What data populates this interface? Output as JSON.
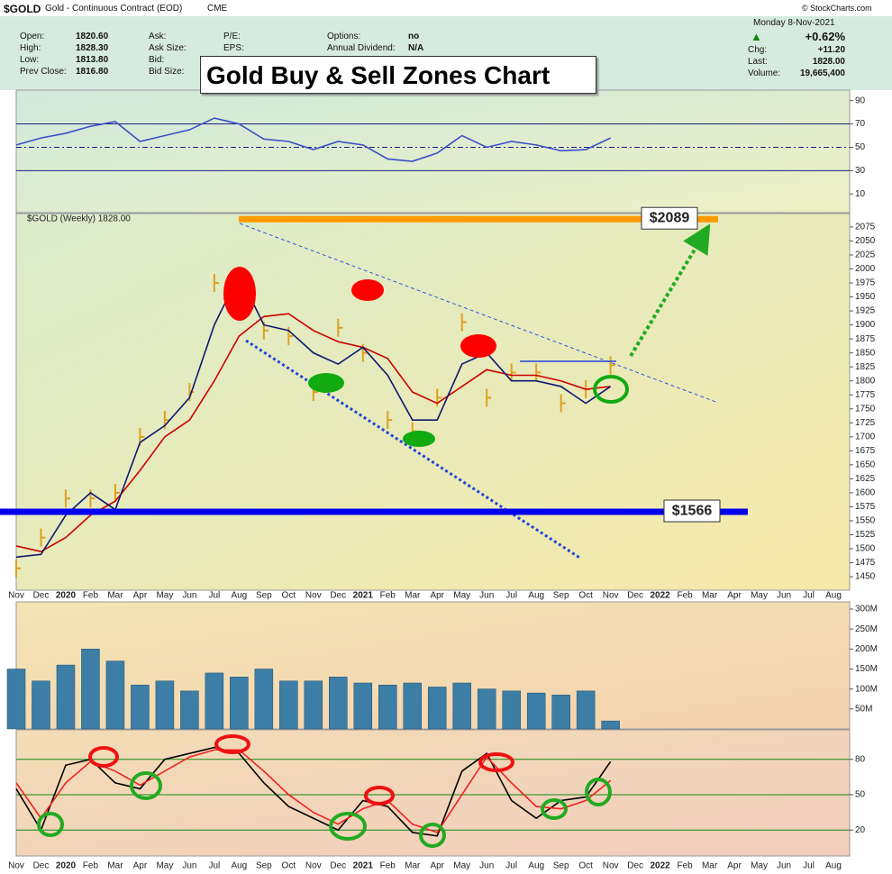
{
  "header": {
    "symbol": "$GOLD",
    "description": "Gold - Continuous Contract (EOD)",
    "exchange": "CME",
    "copyright": "© StockCharts.com",
    "col1": [
      {
        "label": "Open:",
        "value": "1820.60"
      },
      {
        "label": "High:",
        "value": "1828.30"
      },
      {
        "label": "Low:",
        "value": "1813.80"
      },
      {
        "label": "Prev Close:",
        "value": "1816.80"
      }
    ],
    "col2": [
      "Ask:",
      "Ask Size:",
      "Bid:",
      "Bid Size:"
    ],
    "col3": [
      "P/E:",
      "EPS:"
    ],
    "col4": [
      {
        "label": "Options:",
        "value": "no"
      },
      {
        "label": "Annual Dividend:",
        "value": "N/A"
      }
    ],
    "date": "Monday  8-Nov-2021",
    "change_pct": "+0.62%",
    "col5": [
      {
        "label": "Chg:",
        "value": "+11.20"
      },
      {
        "label": "Last:",
        "value": "1828.00"
      },
      {
        "label": "Volume:",
        "value": "19,665,400"
      }
    ]
  },
  "overlay_title": "Gold Buy & Sell Zones Chart",
  "chart_data": [
    {
      "type": "line",
      "ylim": [
        -6,
        99
      ],
      "yticks": [
        10,
        30,
        50,
        70,
        90
      ],
      "levels": [
        30,
        50,
        70
      ],
      "series": [
        {
          "color": "#3a4fc8",
          "values": [
            52,
            58,
            62,
            68,
            72,
            55,
            60,
            65,
            75,
            70,
            57,
            55,
            48,
            55,
            52,
            40,
            38,
            45,
            60,
            50,
            55,
            52,
            47,
            48,
            58,
            null,
            null,
            null,
            null,
            null,
            null,
            null,
            null,
            null
          ]
        }
      ]
    },
    {
      "type": "line",
      "legend_label": "$GOLD (Weekly) 1828.00",
      "ylim": [
        1426,
        2099
      ],
      "yticks": [
        1450,
        1475,
        1500,
        1525,
        1550,
        1575,
        1600,
        1625,
        1650,
        1675,
        1700,
        1725,
        1750,
        1775,
        1800,
        1825,
        1850,
        1875,
        1900,
        1925,
        1950,
        1975,
        2000,
        2025,
        2050,
        2075
      ],
      "categories": [
        "Nov",
        "Dec",
        "2020",
        "Feb",
        "Mar",
        "Apr",
        "May",
        "Jun",
        "Jul",
        "Aug",
        "Sep",
        "Oct",
        "Nov",
        "Dec",
        "2021",
        "Feb",
        "Mar",
        "Apr",
        "May",
        "Jun",
        "Jul",
        "Aug",
        "Sep",
        "Oct",
        "Nov",
        "Dec",
        "2022",
        "Feb",
        "Mar",
        "Apr",
        "May",
        "Jun",
        "Jul",
        "Aug"
      ],
      "annotations": [
        {
          "label": "$2089",
          "value": 2089,
          "color": "#ff9900"
        },
        {
          "label": "$1566",
          "value": 1566,
          "color": "#0000ee"
        }
      ],
      "series": [
        {
          "color": "#e0a020",
          "marker": "tick",
          "values": [
            1465,
            1520,
            1590,
            1590,
            1600,
            1700,
            1730,
            1780,
            1975,
            1970,
            1890,
            1880,
            1780,
            1895,
            1850,
            1730,
            1710,
            1770,
            1905,
            1770,
            1815,
            1815,
            1760,
            1785,
            1828,
            null,
            null,
            null,
            null,
            null,
            null,
            null,
            null,
            null
          ]
        },
        {
          "color": "#cc0000",
          "values": [
            1505,
            1495,
            1520,
            1560,
            1585,
            1640,
            1700,
            1730,
            1800,
            1880,
            1915,
            1920,
            1890,
            1870,
            1860,
            1840,
            1780,
            1760,
            1790,
            1820,
            1810,
            1810,
            1800,
            1785,
            1790,
            null,
            null,
            null,
            null,
            null,
            null,
            null,
            null,
            null
          ]
        },
        {
          "color": "#101870",
          "values": [
            1485,
            1490,
            1560,
            1600,
            1570,
            1690,
            1720,
            1770,
            1900,
            1990,
            1900,
            1890,
            1850,
            1830,
            1860,
            1810,
            1730,
            1730,
            1830,
            1850,
            1800,
            1800,
            1790,
            1760,
            1790,
            null,
            null,
            null,
            null,
            null,
            null,
            null,
            null,
            null
          ]
        }
      ]
    },
    {
      "type": "bar",
      "ylim": [
        0,
        318000000
      ],
      "yticks": [
        {
          "value": 50000000,
          "label": "50M"
        },
        {
          "value": 100000000,
          "label": "100M"
        },
        {
          "value": 150000000,
          "label": "150M"
        },
        {
          "value": 200000000,
          "label": "200M"
        },
        {
          "value": 250000000,
          "label": "250M"
        },
        {
          "value": 300000000,
          "label": "300M"
        }
      ],
      "series": [
        {
          "color": "#3d7ea6",
          "values": [
            150000000,
            120000000,
            160000000,
            200000000,
            170000000,
            110000000,
            120000000,
            95000000,
            140000000,
            130000000,
            150000000,
            120000000,
            120000000,
            130000000,
            115000000,
            110000000,
            115000000,
            105000000,
            115000000,
            100000000,
            95000000,
            90000000,
            85000000,
            95000000,
            20000000,
            null,
            null,
            null,
            null,
            null,
            null,
            null,
            null,
            null
          ]
        }
      ]
    },
    {
      "type": "line",
      "ylim": [
        -2,
        105
      ],
      "yticks": [
        20,
        50,
        80
      ],
      "grid": true,
      "categories": [
        "Nov",
        "Dec",
        "2020",
        "Feb",
        "Mar",
        "Apr",
        "May",
        "Jun",
        "Jul",
        "Aug",
        "Sep",
        "Oct",
        "Nov",
        "Dec",
        "2021",
        "Feb",
        "Mar",
        "Apr",
        "May",
        "Jun",
        "Jul",
        "Aug",
        "Sep",
        "Oct",
        "Nov",
        "Dec",
        "2022",
        "Feb",
        "Mar",
        "Apr",
        "May",
        "Jun",
        "Jul",
        "Aug"
      ],
      "series": [
        {
          "color": "#000000",
          "values": [
            55,
            20,
            75,
            80,
            60,
            55,
            80,
            85,
            90,
            85,
            60,
            40,
            30,
            20,
            45,
            40,
            18,
            15,
            70,
            85,
            45,
            30,
            45,
            48,
            78,
            null,
            null,
            null,
            null,
            null,
            null,
            null,
            null,
            null
          ]
        },
        {
          "color": "#ee2222",
          "values": [
            60,
            30,
            60,
            78,
            70,
            58,
            70,
            82,
            88,
            88,
            70,
            50,
            35,
            25,
            38,
            45,
            25,
            18,
            50,
            82,
            60,
            40,
            38,
            45,
            62,
            null,
            null,
            null,
            null,
            null,
            null,
            null,
            null,
            null
          ]
        }
      ]
    }
  ]
}
